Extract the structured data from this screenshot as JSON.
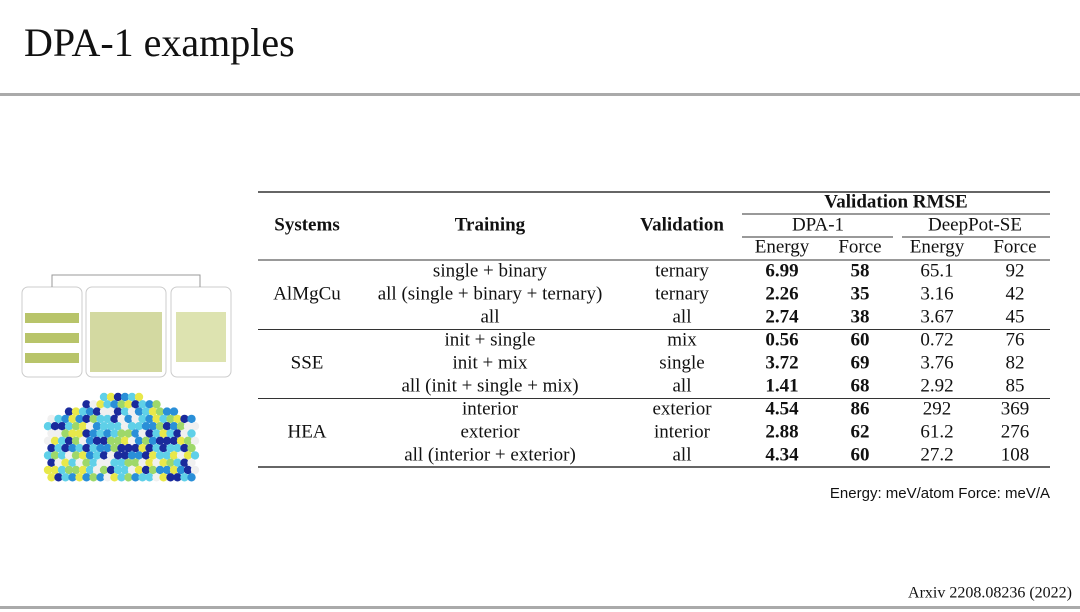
{
  "header": {
    "title": "DPA-1 examples"
  },
  "table": {
    "columns": {
      "systems": "Systems",
      "training": "Training",
      "validation": "Validation",
      "rmse": "Validation RMSE",
      "models": [
        "DPA-1",
        "DeepPot-SE"
      ],
      "metrics": [
        "Energy",
        "Force"
      ]
    },
    "groups": [
      {
        "system": "AlMgCu",
        "rows": [
          [
            "single + binary",
            "ternary",
            6.99,
            58,
            65.1,
            92
          ],
          [
            "all (single + binary + ternary)",
            "ternary",
            2.26,
            35,
            3.16,
            42
          ],
          [
            "all",
            "all",
            2.74,
            38,
            3.67,
            45
          ]
        ]
      },
      {
        "system": "SSE",
        "rows": [
          [
            "init + single",
            "mix",
            0.56,
            60,
            0.72,
            76
          ],
          [
            "init + mix",
            "single",
            3.72,
            69,
            3.76,
            82
          ],
          [
            "all (init + single + mix)",
            "all",
            1.41,
            68,
            2.92,
            85
          ]
        ]
      },
      {
        "system": "HEA",
        "rows": [
          [
            "interior",
            "exterior",
            4.54,
            86,
            292,
            369
          ],
          [
            "exterior",
            "interior",
            2.88,
            62,
            61.2,
            276
          ],
          [
            "all (interior + exterior)",
            "all",
            4.34,
            60,
            27.2,
            108
          ]
        ]
      }
    ],
    "units": "Energy: meV/atom Force: meV/A"
  },
  "citation": "Arxiv 2208.08236 (2022)"
}
